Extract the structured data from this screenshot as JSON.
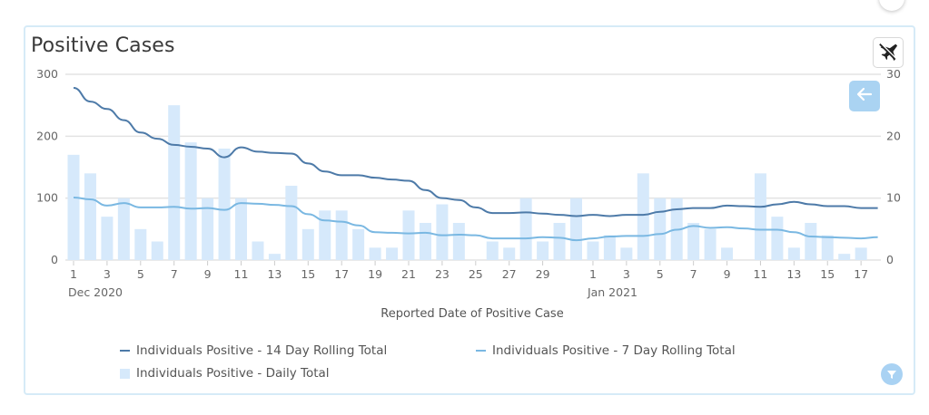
{
  "title": "Positive Cases",
  "buttons": {
    "toggle_icon": "plane-icon",
    "back_icon": "arrow-left-icon",
    "filter_icon": "filter-icon"
  },
  "colors": {
    "rolling14": "#4d7aa8",
    "rolling7": "#7ab8e2",
    "daily": "#d6e9fb",
    "grid": "#e3e3e3"
  },
  "legend": [
    {
      "label": "Individuals Positive - 14 Day Rolling Total",
      "type": "line",
      "series": "rolling14"
    },
    {
      "label": "Individuals Positive - 7 Day Rolling Total",
      "type": "line",
      "series": "rolling7"
    },
    {
      "label": "Individuals Positive - Daily Total",
      "type": "bar",
      "series": "daily"
    }
  ],
  "chart_data": {
    "type": "bar",
    "title": "Positive Cases",
    "xlabel": "Reported Date of Positive Case",
    "ylabel_left": "",
    "ylabel_right": "",
    "ylim_left": [
      0,
      300
    ],
    "ylim_right": [
      0,
      30
    ],
    "yticks_left": [
      "0",
      "100",
      "200",
      "300"
    ],
    "yticks_right": [
      "0",
      "10",
      "20",
      "30"
    ],
    "grid": true,
    "legend_position": "bottom",
    "x_tick_labels": [
      {
        "index": 0,
        "label": "1",
        "sub": "Dec 2020"
      },
      {
        "index": 2,
        "label": "3"
      },
      {
        "index": 4,
        "label": "5"
      },
      {
        "index": 6,
        "label": "7"
      },
      {
        "index": 8,
        "label": "9"
      },
      {
        "index": 10,
        "label": "11"
      },
      {
        "index": 12,
        "label": "13"
      },
      {
        "index": 14,
        "label": "15"
      },
      {
        "index": 16,
        "label": "17"
      },
      {
        "index": 18,
        "label": "19"
      },
      {
        "index": 20,
        "label": "21"
      },
      {
        "index": 22,
        "label": "23"
      },
      {
        "index": 24,
        "label": "25"
      },
      {
        "index": 26,
        "label": "27"
      },
      {
        "index": 28,
        "label": "29"
      },
      {
        "index": 31,
        "label": "1",
        "sub": "Jan 2021"
      },
      {
        "index": 33,
        "label": "3"
      },
      {
        "index": 35,
        "label": "5"
      },
      {
        "index": 37,
        "label": "7"
      },
      {
        "index": 39,
        "label": "9"
      },
      {
        "index": 41,
        "label": "11"
      },
      {
        "index": 43,
        "label": "13"
      },
      {
        "index": 45,
        "label": "15"
      },
      {
        "index": 47,
        "label": "17"
      }
    ],
    "categories": [
      "2020-12-01",
      "2020-12-02",
      "2020-12-03",
      "2020-12-04",
      "2020-12-05",
      "2020-12-06",
      "2020-12-07",
      "2020-12-08",
      "2020-12-09",
      "2020-12-10",
      "2020-12-11",
      "2020-12-12",
      "2020-12-13",
      "2020-12-14",
      "2020-12-15",
      "2020-12-16",
      "2020-12-17",
      "2020-12-18",
      "2020-12-19",
      "2020-12-20",
      "2020-12-21",
      "2020-12-22",
      "2020-12-23",
      "2020-12-24",
      "2020-12-25",
      "2020-12-26",
      "2020-12-27",
      "2020-12-28",
      "2020-12-29",
      "2020-12-30",
      "2020-12-31",
      "2021-01-01",
      "2021-01-02",
      "2021-01-03",
      "2021-01-04",
      "2021-01-05",
      "2021-01-06",
      "2021-01-07",
      "2021-01-08",
      "2021-01-09",
      "2021-01-10",
      "2021-01-11",
      "2021-01-12",
      "2021-01-13",
      "2021-01-14",
      "2021-01-15",
      "2021-01-16",
      "2021-01-17",
      "2021-01-18"
    ],
    "series": [
      {
        "name": "Individuals Positive - Daily Total",
        "type": "bar",
        "axis": "right",
        "values": [
          17,
          14,
          7,
          10,
          5,
          3,
          25,
          19,
          10,
          18,
          10,
          3,
          1,
          12,
          5,
          8,
          8,
          5,
          2,
          2,
          8,
          6,
          9,
          6,
          0,
          3,
          2,
          10,
          3,
          6,
          10,
          3,
          4,
          2,
          14,
          10,
          10,
          6,
          5,
          2,
          0,
          14,
          7,
          2,
          6,
          4,
          1,
          2,
          0
        ]
      },
      {
        "name": "Individuals Positive - 14 Day Rolling Total",
        "type": "line",
        "axis": "left",
        "values": [
          278,
          256,
          244,
          226,
          206,
          196,
          186,
          183,
          180,
          166,
          182,
          175,
          173,
          172,
          156,
          143,
          137,
          137,
          133,
          130,
          128,
          113,
          100,
          97,
          85,
          76,
          76,
          77,
          75,
          73,
          71,
          73,
          71,
          73,
          73,
          78,
          82,
          84,
          84,
          88,
          87,
          86,
          90,
          94,
          90,
          87,
          87,
          84,
          84
        ]
      },
      {
        "name": "Individuals Positive - 7 Day Rolling Total",
        "type": "line",
        "axis": "left",
        "values": [
          101,
          98,
          88,
          92,
          85,
          85,
          86,
          83,
          84,
          81,
          92,
          91,
          89,
          87,
          74,
          64,
          62,
          56,
          45,
          44,
          43,
          44,
          40,
          41,
          40,
          35,
          35,
          35,
          37,
          36,
          32,
          35,
          38,
          39,
          39,
          42,
          49,
          55,
          52,
          53,
          51,
          49,
          49,
          45,
          38,
          37,
          36,
          35,
          37
        ]
      }
    ]
  }
}
